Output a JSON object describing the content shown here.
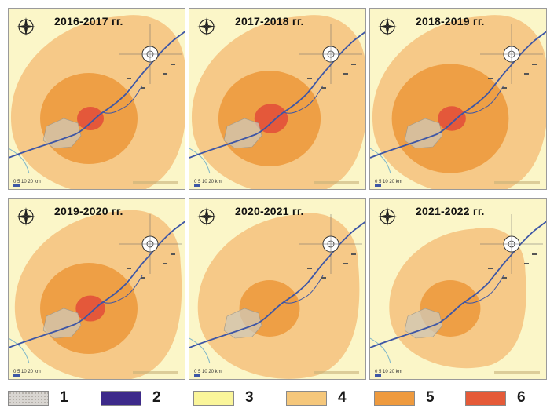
{
  "colors": {
    "background": "#fbf6c8",
    "zone3": "#fbf6c8",
    "zone4": "#f6c988",
    "zone5": "#ee9f45",
    "zone6": "#e4583a",
    "river": "#3d56a6",
    "settlement": "#cfc8b8",
    "stream": "#7fb7c8"
  },
  "panels": [
    {
      "title": "2016-2017 гг.",
      "zone4_r": 1.0,
      "zone5_r": 1.0,
      "zone6_r": 1.0
    },
    {
      "title": "2017-2018 гг.",
      "zone4_r": 1.0,
      "zone5_r": 1.05,
      "zone6_r": 1.25
    },
    {
      "title": "2018-2019 гг.",
      "zone4_r": 1.0,
      "zone5_r": 1.2,
      "zone6_r": 1.05
    },
    {
      "title": "2019-2020 гг.",
      "zone4_r": 0.95,
      "zone5_r": 1.0,
      "zone6_r": 1.1
    },
    {
      "title": "2020-2021 гг.",
      "zone4_r": 0.92,
      "zone5_r": 0.62,
      "zone6_r": 0
    },
    {
      "title": "2021-2022 гг.",
      "zone4_r": 0.78,
      "zone5_r": 0.62,
      "zone6_r": 0
    }
  ],
  "scale_label": "0  5  10      20 km",
  "legend": [
    {
      "label": "1",
      "color": "#d9d6d2",
      "pattern": "dotted"
    },
    {
      "label": "2",
      "color": "#3d2a8a",
      "pattern": "solid"
    },
    {
      "label": "3",
      "color": "#faf59a",
      "pattern": "solid"
    },
    {
      "label": "4",
      "color": "#f5c77b",
      "pattern": "solid"
    },
    {
      "label": "5",
      "color": "#ee9a3e",
      "pattern": "solid"
    },
    {
      "label": "6",
      "color": "#e55a38",
      "pattern": "solid"
    }
  ]
}
